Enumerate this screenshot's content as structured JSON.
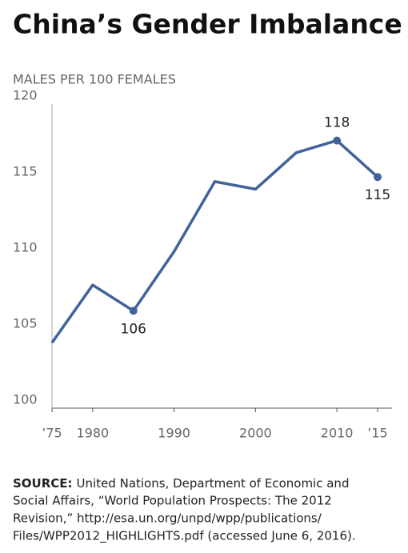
{
  "chart_data": {
    "type": "line",
    "title": "China’s Gender Imbalance",
    "subtitle": "MALES PER 100 FEMALES",
    "x": [
      1975,
      1980,
      1985,
      1990,
      1995,
      2000,
      2005,
      2010,
      2015
    ],
    "series": [
      {
        "name": "Males per 100 females",
        "color": "#41639a",
        "values": [
          104.3,
          108.1,
          106.4,
          110.3,
          114.9,
          114.4,
          116.8,
          117.6,
          115.2
        ],
        "value_labels": [
          null,
          null,
          "106",
          null,
          null,
          null,
          null,
          "118",
          "115"
        ]
      }
    ],
    "xlim": [
      1975,
      2015
    ],
    "xticks": [
      {
        "value": 1975,
        "label": "’75"
      },
      1980,
      1990,
      2000,
      2010,
      {
        "value": 2015,
        "label": "’15"
      }
    ],
    "ylim": [
      100,
      120
    ],
    "yticks": [
      100,
      105,
      110,
      115,
      120
    ],
    "grid": false,
    "source_label": "SOURCE:",
    "source_lines": [
      "United Nations, Department of Economic and",
      "Social Affairs, “World Population Prospects: The 2012",
      "Revision,” http://esa.un.org/unpd/wpp/publications/",
      "Files/WPP2012_HIGHLIGHTS.pdf (accessed June 6, 2016)."
    ]
  }
}
